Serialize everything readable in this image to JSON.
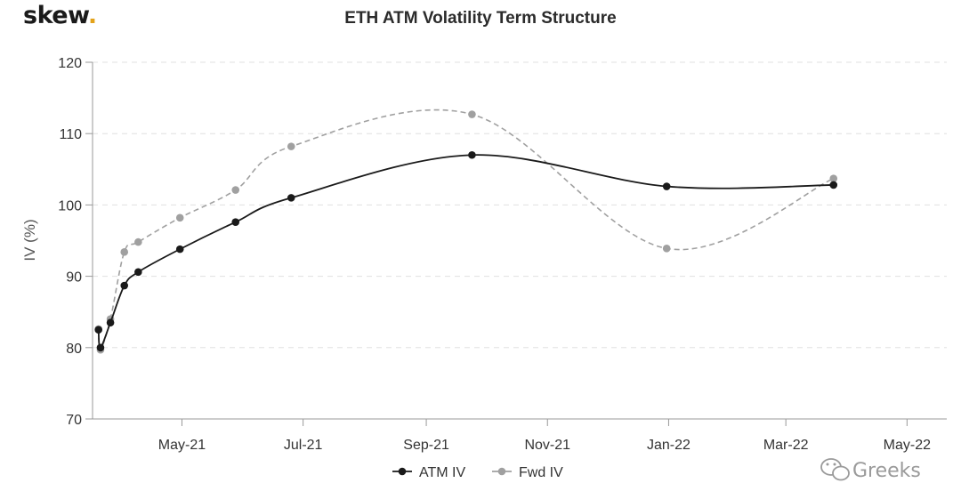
{
  "brand": {
    "name": "skew",
    "dot": "."
  },
  "watermark": {
    "text": "Greeks",
    "icon": "wechat-icon"
  },
  "colors": {
    "atm": "#1a1a1a",
    "fwd": "#a0a0a0",
    "grid": "#e0e0e0",
    "accent": "#e3a21a"
  },
  "chart_data": {
    "type": "line",
    "title": "ETH ATM Volatility Term Structure",
    "xlabel": "",
    "ylabel": "IV (%)",
    "ylim": [
      70,
      120
    ],
    "yticks": [
      70,
      80,
      90,
      100,
      110,
      120
    ],
    "xlim": [
      "2021-03-17",
      "2022-05-21"
    ],
    "xticks": [
      {
        "date": "2021-05-01",
        "label": "May-21"
      },
      {
        "date": "2021-07-01",
        "label": "Jul-21"
      },
      {
        "date": "2021-09-01",
        "label": "Sep-21"
      },
      {
        "date": "2021-11-01",
        "label": "Nov-21"
      },
      {
        "date": "2022-01-01",
        "label": "Jan-22"
      },
      {
        "date": "2022-03-01",
        "label": "Mar-22"
      },
      {
        "date": "2022-05-01",
        "label": "May-22"
      }
    ],
    "grid": "horizontal dashed",
    "legend": "bottom-center",
    "series": [
      {
        "name": "ATM IV",
        "style": "solid",
        "color": "#1a1a1a",
        "points": [
          {
            "x": "2021-03-20",
            "y": 82.5
          },
          {
            "x": "2021-03-21",
            "y": 80.0
          },
          {
            "x": "2021-03-26",
            "y": 83.5
          },
          {
            "x": "2021-04-02",
            "y": 88.7
          },
          {
            "x": "2021-04-09",
            "y": 90.6
          },
          {
            "x": "2021-04-30",
            "y": 93.8
          },
          {
            "x": "2021-05-28",
            "y": 97.6
          },
          {
            "x": "2021-06-25",
            "y": 101.0
          },
          {
            "x": "2021-09-24",
            "y": 107.0
          },
          {
            "x": "2021-12-31",
            "y": 102.6
          },
          {
            "x": "2022-03-25",
            "y": 102.8
          }
        ]
      },
      {
        "name": "Fwd IV",
        "style": "dashed",
        "color": "#a0a0a0",
        "points": [
          {
            "x": "2021-03-20",
            "y": 82.6
          },
          {
            "x": "2021-03-21",
            "y": 79.7
          },
          {
            "x": "2021-03-26",
            "y": 84.0
          },
          {
            "x": "2021-04-02",
            "y": 93.4
          },
          {
            "x": "2021-04-09",
            "y": 94.8
          },
          {
            "x": "2021-04-30",
            "y": 98.2
          },
          {
            "x": "2021-05-28",
            "y": 102.1
          },
          {
            "x": "2021-06-25",
            "y": 108.2
          },
          {
            "x": "2021-09-24",
            "y": 112.7
          },
          {
            "x": "2021-12-31",
            "y": 93.9
          },
          {
            "x": "2022-03-25",
            "y": 103.7
          }
        ]
      }
    ]
  }
}
